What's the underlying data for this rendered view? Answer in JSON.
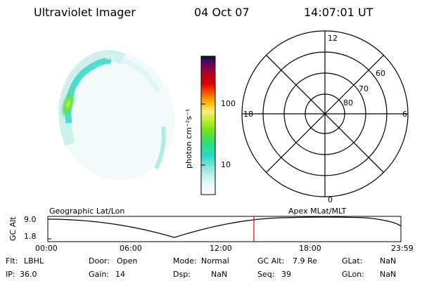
{
  "header": {
    "title": "Ultraviolet Imager",
    "date": "04 Oct 07",
    "time": "14:07:01 UT"
  },
  "colorbar": {
    "unit_label": "photon cm⁻²s⁻¹",
    "ticks": [
      {
        "label": "100",
        "value": 100
      },
      {
        "label": "10",
        "value": 10
      }
    ]
  },
  "polar_plot": {
    "labels": {
      "top": "12",
      "bottom": "0",
      "left": "18",
      "right": "6",
      "ring_60": "60",
      "ring_70": "70",
      "ring_80": "80"
    }
  },
  "timeline": {
    "ylabel": "GC Alt",
    "y_max_label": "9.0",
    "y_min_label": "1.8",
    "left_title": "Geographic Lat/Lon",
    "right_title": "Apex  MLat/MLT",
    "x_ticks": [
      "00:00",
      "06:00",
      "12:00",
      "18:00",
      "23:59"
    ],
    "marker_time": "14:07:01",
    "cursor_color": "#e00000"
  },
  "info": {
    "flt_label": "Flt:",
    "flt_value": "LBHL",
    "door_label": "Door:",
    "door_value": "Open",
    "mode_label": "Mode:",
    "mode_value": "Normal",
    "gcalt_label": "GC Alt:",
    "gcalt_value": "7.9 Re",
    "glat_label": "GLat:",
    "glat_value": "NaN",
    "ip_label": "IP:",
    "ip_value": "36.0",
    "gain_label": "Gain:",
    "gain_value": "14",
    "dsp_label": "Dsp:",
    "dsp_value": "NaN",
    "seq_label": "Seq:",
    "seq_value": "39",
    "glon_label": "GLon:",
    "glon_value": "NaN"
  }
}
